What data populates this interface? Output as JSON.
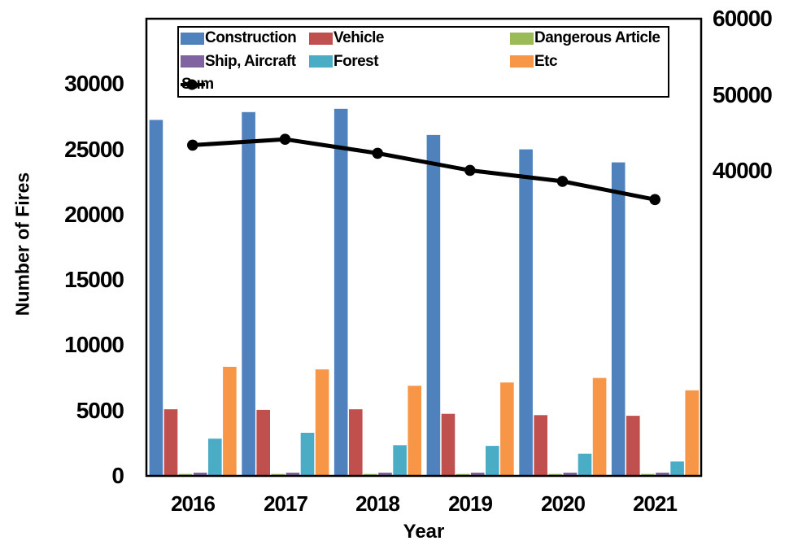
{
  "chart_data": {
    "type": "bar+line",
    "title": "",
    "xlabel": "Year",
    "ylabel": "Number of Fires",
    "categories": [
      "2016",
      "2017",
      "2018",
      "2019",
      "2020",
      "2021"
    ],
    "bar_series": [
      {
        "name": "Construction",
        "color": "#4F81BD",
        "values": [
          27250,
          27850,
          28100,
          26100,
          25000,
          24000
        ]
      },
      {
        "name": "Vehicle",
        "color": "#C0504D",
        "values": [
          5100,
          5050,
          5100,
          4750,
          4650,
          4600
        ]
      },
      {
        "name": "Dangerous Article",
        "color": "#9BBB59",
        "values": [
          150,
          150,
          150,
          150,
          150,
          150
        ]
      },
      {
        "name": "Ship, Aircraft",
        "color": "#8064A2",
        "values": [
          250,
          250,
          250,
          250,
          250,
          250
        ]
      },
      {
        "name": "Forest",
        "color": "#4BACC6",
        "values": [
          2850,
          3300,
          2350,
          2300,
          1700,
          1100
        ]
      },
      {
        "name": "Etc",
        "color": "#F79646",
        "values": [
          8350,
          8150,
          6900,
          7150,
          7500,
          6550
        ]
      }
    ],
    "line_series": {
      "name": "Sum",
      "color": "#000000",
      "marker": "circle",
      "axis": "right",
      "values": [
        43413,
        44178,
        42338,
        40103,
        38659,
        36267
      ]
    },
    "left_axis": {
      "min": 0,
      "max": 35000,
      "tick_labels": [
        "0",
        "5000",
        "10000",
        "15000",
        "20000",
        "25000",
        "30000"
      ],
      "tick_values": [
        0,
        5000,
        10000,
        15000,
        20000,
        25000,
        30000
      ]
    },
    "right_axis": {
      "min": 0,
      "max": 60000,
      "tick_labels": [
        "40000",
        "50000",
        "60000"
      ],
      "tick_values": [
        40000,
        50000,
        60000
      ]
    },
    "legend": {
      "position": "top-inside",
      "entries": [
        "Construction",
        "Vehicle",
        "Dangerous Article",
        "Ship, Aircraft",
        "Forest",
        "Etc",
        "Sum"
      ]
    },
    "grid": false,
    "frame_color": "#000000",
    "background_color": "#ffffff"
  }
}
